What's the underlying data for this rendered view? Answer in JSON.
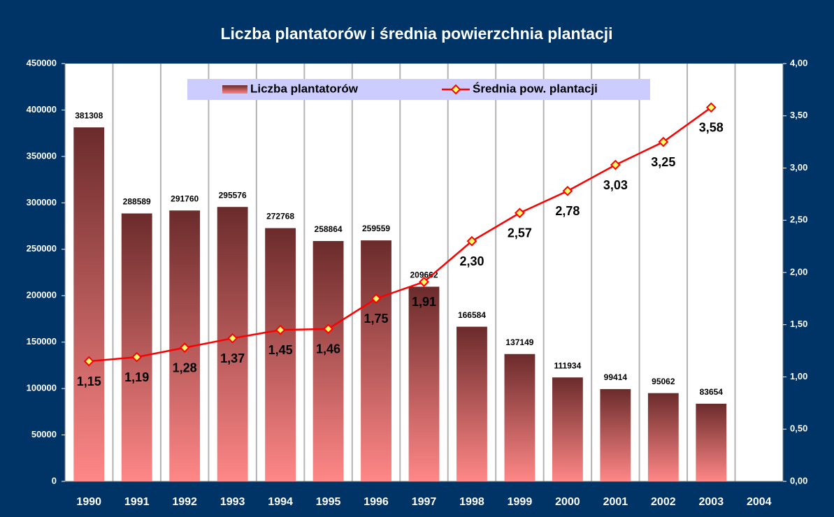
{
  "chart_data": {
    "type": "bar_line",
    "title": "Liczba plantatorów i średnia powierzchnia plantacji",
    "categories": [
      "1990",
      "1991",
      "1992",
      "1993",
      "1994",
      "1995",
      "1996",
      "1997",
      "1998",
      "1999",
      "2000",
      "2001",
      "2002",
      "2003",
      "2004"
    ],
    "series": [
      {
        "name": "Liczba plantatorów",
        "type": "bar",
        "gradient": [
          "#6b2b2b",
          "#ff8787"
        ],
        "values": [
          381308,
          288589,
          291760,
          295576,
          272768,
          258864,
          259559,
          209662,
          166584,
          137149,
          111934,
          99414,
          95062,
          83654,
          null
        ]
      },
      {
        "name": "Średnia pow. plantacji",
        "type": "line",
        "axis": "y2",
        "color": "#ff0000",
        "marker_color": "#ffff66",
        "values": [
          1.15,
          1.19,
          1.28,
          1.37,
          1.45,
          1.46,
          1.75,
          1.91,
          2.3,
          2.57,
          2.78,
          3.03,
          3.25,
          3.58,
          null
        ],
        "value_labels": [
          "1,15",
          "1,19",
          "1,28",
          "1,37",
          "1,45",
          "1,46",
          "1,75",
          "1,91",
          "2,30",
          "2,57",
          "2,78",
          "3,03",
          "3,25",
          "3,58",
          null
        ]
      }
    ],
    "ylim": [
      0,
      450000
    ],
    "yticks": [
      0,
      50000,
      100000,
      150000,
      200000,
      250000,
      300000,
      350000,
      400000,
      450000
    ],
    "y2lim": [
      0,
      4
    ],
    "y2ticks": [
      {
        "value": 0,
        "label": "0,00"
      },
      {
        "value": 0.5,
        "label": "0,50"
      },
      {
        "value": 1,
        "label": "1,00"
      },
      {
        "value": 1.5,
        "label": "1,50"
      },
      {
        "value": 2,
        "label": "2,00"
      },
      {
        "value": 2.5,
        "label": "2,50"
      },
      {
        "value": 3,
        "label": "3,00"
      },
      {
        "value": 3.5,
        "label": "3,50"
      },
      {
        "value": 4,
        "label": "4,00"
      }
    ],
    "legend": "top"
  }
}
